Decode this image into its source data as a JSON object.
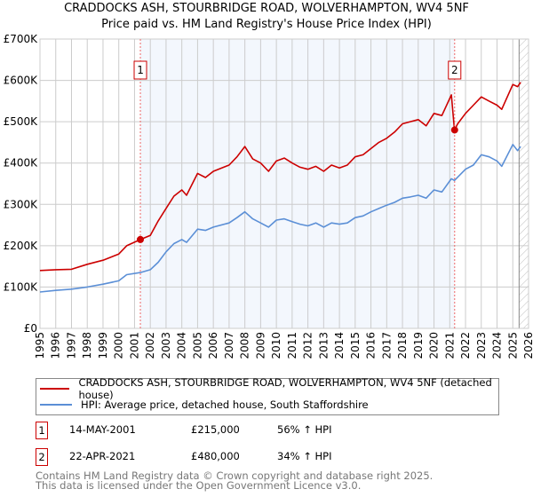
{
  "chart_data": {
    "type": "line",
    "title": "CRADDOCKS ASH, STOURBRIDGE ROAD, WOLVERHAMPTON, WV4 5NF",
    "subtitle": "Price paid vs. HM Land Registry's House Price Index (HPI)",
    "xlim": [
      1995,
      2026
    ],
    "ylim": [
      0,
      700000
    ],
    "x_ticks": [
      "1995",
      "1996",
      "1997",
      "1998",
      "1999",
      "2000",
      "2001",
      "2002",
      "2003",
      "2004",
      "2005",
      "2006",
      "2007",
      "2008",
      "2009",
      "2010",
      "2011",
      "2012",
      "2013",
      "2014",
      "2015",
      "2016",
      "2017",
      "2018",
      "2019",
      "2020",
      "2021",
      "2022",
      "2023",
      "2024",
      "2025",
      "2026"
    ],
    "y_ticks": [
      {
        "v": 0,
        "label": "£0"
      },
      {
        "v": 100000,
        "label": "£100K"
      },
      {
        "v": 200000,
        "label": "£200K"
      },
      {
        "v": 300000,
        "label": "£300K"
      },
      {
        "v": 400000,
        "label": "£400K"
      },
      {
        "v": 500000,
        "label": "£500K"
      },
      {
        "v": 600000,
        "label": "£600K"
      },
      {
        "v": 700000,
        "label": "£700K"
      }
    ],
    "grid": true,
    "forecast_hatch_start": 2025.4,
    "series": [
      {
        "name": "CRADDOCKS ASH, STOURBRIDGE ROAD, WOLVERHAMPTON, WV4 5NF (detached house)",
        "color": "#cc0000",
        "x": [
          1995,
          1996,
          1997,
          1998,
          1999,
          2000,
          2000.5,
          2001.37,
          2002,
          2002.5,
          2003,
          2003.5,
          2004,
          2004.3,
          2005,
          2005.5,
          2006,
          2007,
          2007.5,
          2008,
          2008.5,
          2009,
          2009.5,
          2010,
          2010.5,
          2011,
          2011.5,
          2012,
          2012.5,
          2013,
          2013.5,
          2014,
          2014.5,
          2015,
          2015.5,
          2016,
          2016.5,
          2017,
          2017.5,
          2018,
          2018.5,
          2019,
          2019.5,
          2020,
          2020.5,
          2021.1,
          2021.3,
          2021.5,
          2022,
          2022.5,
          2023,
          2023.5,
          2024,
          2024.3,
          2025,
          2025.3,
          2025.5
        ],
        "y": [
          140000,
          142000,
          143000,
          155000,
          165000,
          180000,
          200000,
          215000,
          225000,
          260000,
          290000,
          320000,
          335000,
          322000,
          375000,
          365000,
          380000,
          395000,
          415000,
          440000,
          410000,
          400000,
          380000,
          405000,
          412000,
          400000,
          390000,
          385000,
          392000,
          380000,
          395000,
          388000,
          395000,
          415000,
          420000,
          435000,
          450000,
          460000,
          475000,
          495000,
          500000,
          505000,
          490000,
          520000,
          515000,
          565000,
          480000,
          495000,
          520000,
          540000,
          560000,
          550000,
          540000,
          530000,
          590000,
          585000,
          595000
        ]
      },
      {
        "name": "HPI: Average price, detached house, South Staffordshire",
        "color": "#5b8fd6",
        "x": [
          1995,
          1996,
          1997,
          1998,
          1999,
          2000,
          2000.5,
          2001.37,
          2002,
          2002.5,
          2003,
          2003.5,
          2004,
          2004.3,
          2005,
          2005.5,
          2006,
          2007,
          2007.5,
          2008,
          2008.5,
          2009,
          2009.5,
          2010,
          2010.5,
          2011,
          2011.5,
          2012,
          2012.5,
          2013,
          2013.5,
          2014,
          2014.5,
          2015,
          2015.5,
          2016,
          2016.5,
          2017,
          2017.5,
          2018,
          2018.5,
          2019,
          2019.5,
          2020,
          2020.5,
          2021.1,
          2021.3,
          2022,
          2022.5,
          2023,
          2023.5,
          2024,
          2024.3,
          2025,
          2025.3,
          2025.5
        ],
        "y": [
          88000,
          92000,
          95000,
          100000,
          107000,
          115000,
          130000,
          135000,
          142000,
          160000,
          185000,
          205000,
          215000,
          208000,
          240000,
          237000,
          245000,
          255000,
          268000,
          282000,
          265000,
          255000,
          245000,
          262000,
          265000,
          258000,
          252000,
          248000,
          255000,
          245000,
          255000,
          252000,
          255000,
          268000,
          272000,
          282000,
          290000,
          298000,
          305000,
          315000,
          318000,
          322000,
          315000,
          335000,
          330000,
          362000,
          358000,
          385000,
          395000,
          420000,
          415000,
          405000,
          392000,
          445000,
          430000,
          440000
        ]
      }
    ],
    "sales": [
      {
        "id": "1",
        "x": 2001.37,
        "y": 215000,
        "date": "14-MAY-2001",
        "price": "£215,000",
        "hpi": "56% ↑ HPI"
      },
      {
        "id": "2",
        "x": 2021.31,
        "y": 480000,
        "date": "22-APR-2021",
        "price": "£480,000",
        "hpi": "34% ↑ HPI"
      }
    ]
  },
  "legend": {
    "property": "CRADDOCKS ASH, STOURBRIDGE ROAD, WOLVERHAMPTON, WV4 5NF (detached house)",
    "hpi": "HPI: Average price, detached house, South Staffordshire"
  },
  "footer": {
    "line1": "Contains HM Land Registry data © Crown copyright and database right 2025.",
    "line2": "This data is licensed under the Open Government Licence v3.0."
  }
}
